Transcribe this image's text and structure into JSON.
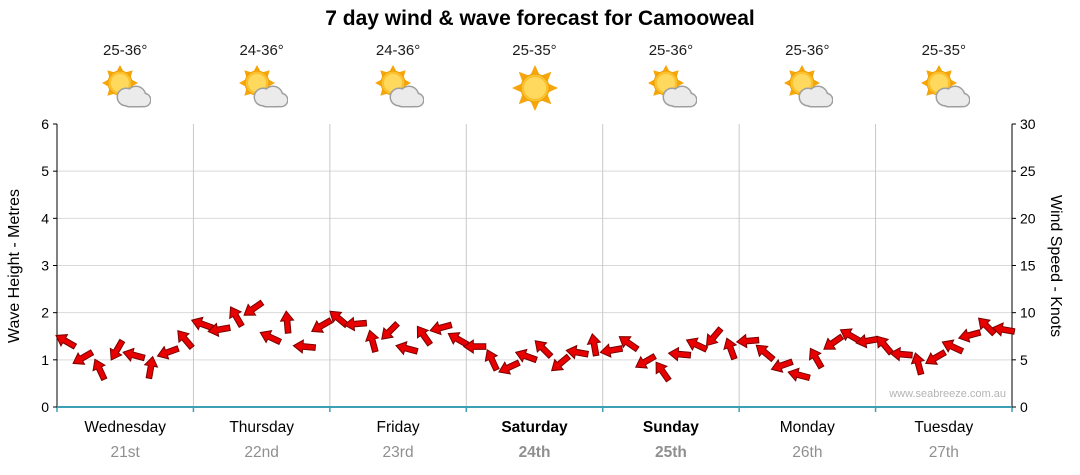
{
  "title": "7 day wind & wave forecast for Camooweal",
  "watermark": "www.seabreeze.com.au",
  "axes": {
    "left_label": "Wave Height - Metres",
    "right_label": "Wind Speed - Knots"
  },
  "days": [
    {
      "name": "Wednesday",
      "date": "21st",
      "temp": "25-36°",
      "icon": "partly-cloudy",
      "weekend": false
    },
    {
      "name": "Thursday",
      "date": "22nd",
      "temp": "24-36°",
      "icon": "partly-cloudy",
      "weekend": false
    },
    {
      "name": "Friday",
      "date": "23rd",
      "temp": "24-36°",
      "icon": "partly-cloudy",
      "weekend": false
    },
    {
      "name": "Saturday",
      "date": "24th",
      "temp": "25-35°",
      "icon": "sunny",
      "weekend": true
    },
    {
      "name": "Sunday",
      "date": "25th",
      "temp": "25-36°",
      "icon": "partly-cloudy",
      "weekend": true
    },
    {
      "name": "Monday",
      "date": "26th",
      "temp": "25-36°",
      "icon": "partly-cloudy",
      "weekend": false
    },
    {
      "name": "Tuesday",
      "date": "27th",
      "temp": "25-35°",
      "icon": "partly-cloudy",
      "weekend": false
    }
  ],
  "chart_data": {
    "type": "scatter",
    "marker": "wind-arrow",
    "title": "7 day wind & wave forecast for Camooweal",
    "x_categories": [
      "Wednesday 21st",
      "Thursday 22nd",
      "Friday 23rd",
      "Saturday 24th",
      "Sunday 25th",
      "Monday 26th",
      "Tuesday 27th"
    ],
    "samples_per_day": 8,
    "left_axis": {
      "label": "Wave Height - Metres",
      "range": [
        0,
        6
      ],
      "ticks": [
        0,
        1,
        2,
        3,
        4,
        5,
        6
      ]
    },
    "right_axis": {
      "label": "Wind Speed - Knots",
      "range": [
        0,
        30
      ],
      "ticks": [
        0,
        5,
        10,
        15,
        20,
        25,
        30
      ]
    },
    "series": [
      {
        "name": "Wind Speed",
        "units": "knots",
        "axis": "right",
        "values": [
          7.0,
          5.2,
          4.0,
          6.0,
          5.5,
          4.2,
          5.8,
          7.2,
          8.8,
          8.2,
          9.6,
          10.4,
          7.4,
          9.0,
          6.4,
          8.6,
          9.4,
          8.8,
          7.0,
          8.0,
          6.2,
          7.6,
          8.4,
          7.2,
          6.4,
          5.0,
          4.2,
          5.4,
          6.2,
          4.6,
          5.8,
          6.6,
          6.0,
          6.8,
          4.8,
          3.8,
          5.6,
          6.6,
          7.4,
          6.2,
          7.0,
          5.8,
          4.4,
          3.4,
          5.2,
          6.8,
          7.6,
          7.0,
          6.6,
          5.6,
          4.6,
          5.2,
          6.4,
          7.6,
          8.6,
          8.2
        ],
        "directions_deg": [
          210,
          150,
          245,
          120,
          195,
          280,
          160,
          230,
          200,
          170,
          240,
          145,
          205,
          265,
          185,
          150,
          220,
          175,
          255,
          135,
          195,
          235,
          165,
          210,
          180,
          245,
          155,
          200,
          225,
          140,
          190,
          260,
          170,
          215,
          150,
          235,
          185,
          205,
          130,
          250,
          175,
          220,
          160,
          195,
          240,
          145,
          210,
          170,
          230,
          185,
          255,
          150,
          205,
          165,
          225,
          190
        ]
      }
    ],
    "colors": {
      "arrow_fill": "#e80000",
      "arrow_stroke": "#7a0000",
      "grid": "#d9d9d9",
      "day_line": "#c9c9c9",
      "axis": "#000000",
      "axis_bottom": "#3d9fb5",
      "day_text": "#000000",
      "date_text": "#8f8f8f",
      "watermark_text": "#b4b4b4"
    },
    "grid": true,
    "legend": "none"
  }
}
